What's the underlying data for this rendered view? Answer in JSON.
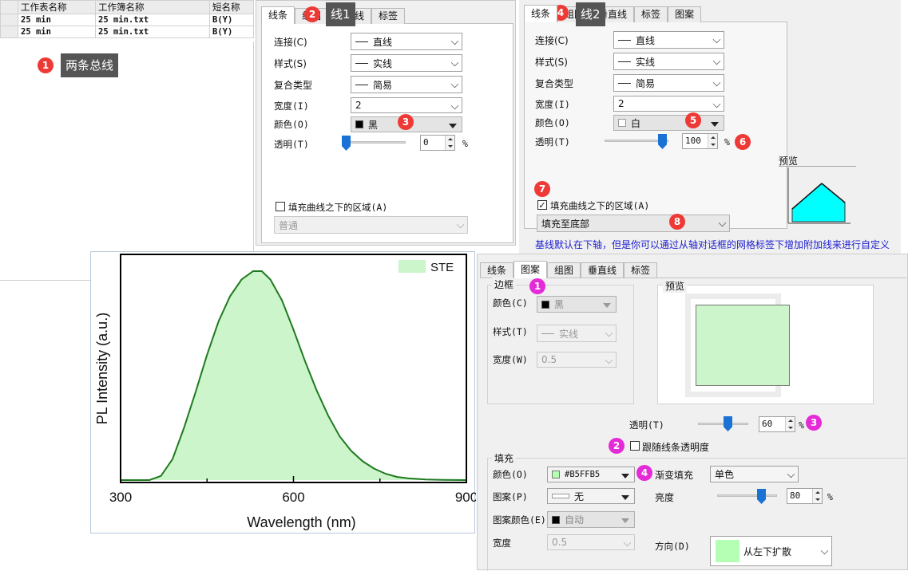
{
  "worksheet": {
    "headers": [
      "工作表名称",
      "工作簿名称",
      "短名称"
    ],
    "rows": [
      [
        "25 min",
        "25 min.txt",
        "B(Y)"
      ],
      [
        "25 min",
        "25 min.txt",
        "B(Y)"
      ]
    ]
  },
  "annotations": {
    "n1": "1",
    "n2": "2",
    "n3": "3",
    "n4": "4",
    "n5": "5",
    "n6": "6",
    "n7": "7",
    "n8": "8",
    "two_lines_tip": "两条总线",
    "line1_tip": "线1",
    "line2_tip": "线2"
  },
  "dialog1": {
    "tabs": [
      "线条",
      "组图",
      "垂直线",
      "标签"
    ],
    "connect_label": "连接(C)",
    "connect_value": "直线",
    "style_label": "样式(S)",
    "style_value": "实线",
    "compound_label": "复合类型",
    "compound_value": "简易",
    "width_label": "宽度(I)",
    "width_value": "2",
    "color_label": "颜色(O)",
    "color_value": "黑",
    "trans_label": "透明(T)",
    "trans_value": "0",
    "pct": "%",
    "fill_label": "填充曲线之下的区域(A)",
    "fill_mode": "普通"
  },
  "dialog2": {
    "tabs": [
      "线条",
      "组图",
      "垂直线",
      "标签",
      "图案"
    ],
    "connect_label": "连接(C)",
    "connect_value": "直线",
    "style_label": "样式(S)",
    "style_value": "实线",
    "compound_label": "复合类型",
    "compound_value": "简易",
    "width_label": "宽度(I)",
    "width_value": "2",
    "color_label": "颜色(O)",
    "color_value": "白",
    "trans_label": "透明(T)",
    "trans_value": "100",
    "pct": "%",
    "preview_label": "预览",
    "fill_label": "填充曲线之下的区域(A)",
    "fill_mode": "填充至底部",
    "hint": "基线默认在下轴，但是你可以通过从轴对话框的网格标签下增加附加线来进行自定义"
  },
  "dialog3": {
    "tabs": [
      "线条",
      "图案",
      "组图",
      "垂直线",
      "标签"
    ],
    "border_title": "边框",
    "border_color_label": "颜色(C)",
    "border_color_value": "黑",
    "border_style_label": "样式(T)",
    "border_style_value": "实线",
    "border_width_label": "宽度(W)",
    "border_width_value": "0.5",
    "preview_label": "预览",
    "trans_label": "透明(T)",
    "trans_value": "60",
    "pct": "%",
    "follow_label": "跟随线条透明度",
    "fill_title": "填充",
    "fill_color_label": "颜色(O)",
    "fill_color_value": "#B5FFB5",
    "gradient_label": "渐变填充",
    "gradient_value": "单色",
    "pattern_label": "图案(P)",
    "pattern_value": "无",
    "brightness_label": "亮度",
    "brightness_value": "80",
    "pattern_color_label": "图案颜色(E)",
    "pattern_color_value": "自动",
    "pattern_width_label": "宽度",
    "pattern_width_value": "0.5",
    "direction_label": "方向(D)",
    "direction_value": "从左下扩散"
  },
  "colors": {
    "fill": "#B5FFB5",
    "chart_fill": "#ccf5cc",
    "chart_line": "#1f7a1f",
    "accent_red": "#ee3a36",
    "accent_magenta": "#e52ad8",
    "slider": "#1a73d4",
    "preview_fill": "#00ffff"
  },
  "chart_data": {
    "type": "area",
    "xlabel": "Wavelength (nm)",
    "ylabel": "PL Intensity (a.u.)",
    "xlim": [
      300,
      900
    ],
    "xticks": [
      "300",
      "600",
      "900"
    ],
    "series": [
      {
        "name": "STE",
        "x": [
          300,
          350,
          370,
          390,
          410,
          430,
          450,
          470,
          490,
          510,
          530,
          545,
          560,
          580,
          600,
          620,
          640,
          660,
          680,
          700,
          720,
          740,
          760,
          780,
          800,
          830,
          860,
          900
        ],
        "y": [
          0,
          0,
          0.02,
          0.1,
          0.25,
          0.42,
          0.6,
          0.76,
          0.88,
          0.96,
          1.0,
          1.0,
          0.96,
          0.86,
          0.72,
          0.57,
          0.43,
          0.31,
          0.21,
          0.14,
          0.09,
          0.055,
          0.03,
          0.015,
          0.008,
          0.003,
          0.001,
          0
        ]
      }
    ]
  }
}
